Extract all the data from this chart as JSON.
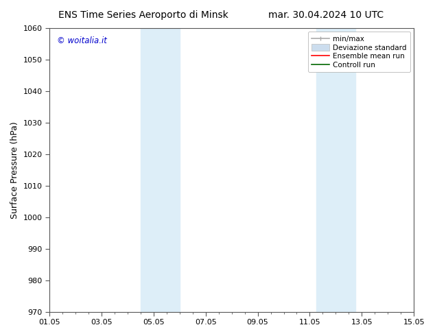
{
  "title_left": "ENS Time Series Aeroporto di Minsk",
  "title_right": "mar. 30.04.2024 10 UTC",
  "ylabel": "Surface Pressure (hPa)",
  "ylim": [
    970,
    1060
  ],
  "yticks": [
    970,
    980,
    990,
    1000,
    1010,
    1020,
    1030,
    1040,
    1050,
    1060
  ],
  "xtick_labels": [
    "01.05",
    "03.05",
    "05.05",
    "07.05",
    "09.05",
    "11.05",
    "13.05",
    "15.05"
  ],
  "xtick_positions": [
    0,
    2,
    4,
    6,
    8,
    10,
    12,
    14
  ],
  "xlim": [
    0,
    14
  ],
  "shaded_bands": [
    {
      "x_start": 3.5,
      "x_end": 5.0,
      "color": "#ddeef8"
    },
    {
      "x_start": 10.25,
      "x_end": 11.75,
      "color": "#ddeef8"
    }
  ],
  "watermark": "© woitalia.it",
  "watermark_color": "#0000cc",
  "background_color": "#ffffff",
  "legend_items": [
    {
      "label": "min/max",
      "color": "#aaaaaa"
    },
    {
      "label": "Deviazione standard",
      "color": "#ccddee"
    },
    {
      "label": "Ensemble mean run",
      "color": "#ff0000"
    },
    {
      "label": "Controll run",
      "color": "#006600"
    }
  ],
  "title_fontsize": 10,
  "tick_fontsize": 8,
  "ylabel_fontsize": 9,
  "legend_fontsize": 7.5
}
